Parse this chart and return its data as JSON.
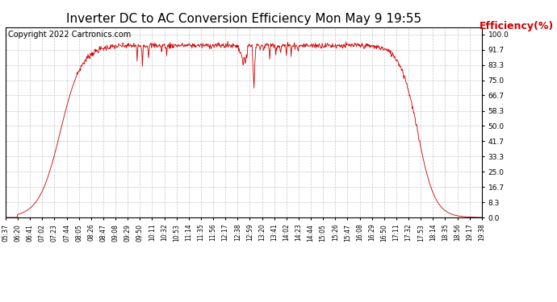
{
  "title": "Inverter DC to AC Conversion Efficiency Mon May 9 19:55",
  "ylabel": "Efficiency(%)",
  "copyright": "Copyright 2022 Cartronics.com",
  "line_color": "#cc0000",
  "bg_color": "#ffffff",
  "grid_color": "#c0c0c0",
  "title_fontsize": 11,
  "ylabel_fontsize": 9,
  "ylabel_color": "#cc0000",
  "copyright_fontsize": 7,
  "yticks": [
    0.0,
    8.3,
    16.7,
    25.0,
    33.3,
    41.7,
    50.0,
    58.3,
    66.7,
    75.0,
    83.3,
    91.7,
    100.0
  ],
  "ylim": [
    0,
    104
  ],
  "xtick_labels": [
    "05:37",
    "06:20",
    "06:41",
    "07:02",
    "07:23",
    "07:44",
    "08:05",
    "08:26",
    "08:47",
    "09:08",
    "09:29",
    "09:50",
    "10:11",
    "10:32",
    "10:53",
    "11:14",
    "11:35",
    "11:56",
    "12:17",
    "12:38",
    "12:59",
    "13:20",
    "13:41",
    "14:02",
    "14:23",
    "14:44",
    "15:05",
    "15:26",
    "15:47",
    "16:08",
    "16:29",
    "16:50",
    "17:11",
    "17:32",
    "17:53",
    "18:14",
    "18:35",
    "18:56",
    "19:17",
    "19:38"
  ]
}
